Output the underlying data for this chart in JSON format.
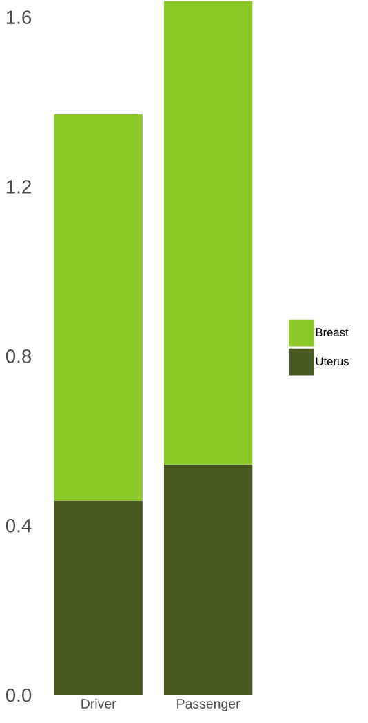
{
  "chart_data": {
    "type": "bar",
    "stacked": true,
    "categories": [
      "Driver",
      "Passenger"
    ],
    "series": [
      {
        "name": "Uterus",
        "color": "#4b5a23",
        "values": [
          0.458,
          0.544
        ]
      },
      {
        "name": "Breast",
        "color": "#8bc928",
        "values": [
          0.912,
          1.093
        ]
      }
    ],
    "ylim": [
      0,
      1.64
    ],
    "yticks": [
      {
        "value": 0,
        "label": "0.0"
      },
      0.4,
      0.8,
      1.2,
      1.6
    ],
    "grid": false,
    "legend": "right"
  }
}
